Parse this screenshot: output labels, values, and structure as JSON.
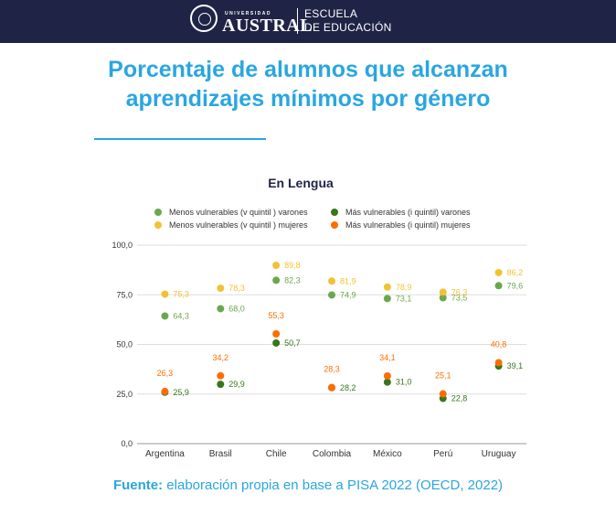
{
  "header": {
    "university_small": "UNIVERSIDAD",
    "university_big": "AUSTRAL",
    "school_line1": "ESCUELA",
    "school_line2": "DE EDUCACIÓN"
  },
  "title_line1": "Porcentaje de alumnos que alcanzan",
  "title_line2": "aprendizajes mínimos por género",
  "source_label": "Fuente:",
  "source_text": "elaboración propia en base a PISA 2022 (OECD, 2022)",
  "chart_data": {
    "type": "scatter",
    "title": "En Lengua",
    "ylim": [
      0,
      100
    ],
    "yticks": [
      "0,0",
      "25,0",
      "50,0",
      "75,0",
      "100,0"
    ],
    "grid": true,
    "legend_position": "top",
    "categories": [
      "Argentina",
      "Brasil",
      "Chile",
      "Colombia",
      "México",
      "Perú",
      "Uruguay"
    ],
    "series": [
      {
        "name": "Menos vulnerables (v quintil ) varones",
        "color": "#6aa84f",
        "values": [
          64.3,
          68.0,
          82.3,
          74.9,
          73.1,
          73.5,
          79.6
        ],
        "labels": [
          "64,3",
          "68,0",
          "82,3",
          "74,9",
          "73,1",
          "73,5",
          "79,6"
        ]
      },
      {
        "name": "Menos vulnerables (v quintil ) mujeres",
        "color": "#f1c232",
        "values": [
          75.3,
          78.3,
          89.8,
          81.9,
          78.9,
          76.3,
          86.2
        ],
        "labels": [
          "75,3",
          "78,3",
          "89,8",
          "81,9",
          "78,9",
          "76,3",
          "86,2"
        ]
      },
      {
        "name": "Más vulnerables (i quintil) varones",
        "color": "#38761d",
        "values": [
          25.9,
          29.9,
          50.7,
          28.2,
          31.0,
          22.8,
          39.1
        ],
        "labels": [
          "25,9",
          "29,9",
          "50,7",
          "28,2",
          "31,0",
          "22,8",
          "39,1"
        ]
      },
      {
        "name": "Más vulnerables (i quintil) mujeres",
        "color": "#ff6d01",
        "values": [
          26.3,
          34.2,
          55.3,
          28.3,
          34.1,
          25.1,
          40.8
        ],
        "labels": [
          "26,3",
          "34,2",
          "55,3",
          "28,3",
          "34,1",
          "25,1",
          "40,8"
        ]
      }
    ]
  }
}
